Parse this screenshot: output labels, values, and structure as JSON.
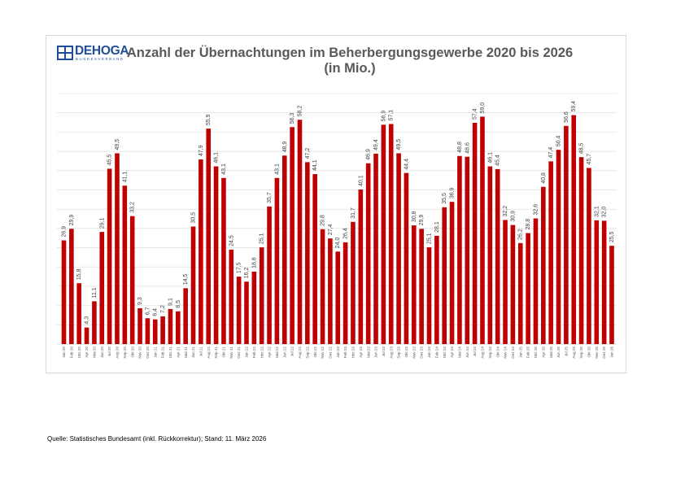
{
  "logo": {
    "name": "DEHOGA",
    "subtitle": "BUNDESVERBAND"
  },
  "source": "Quelle: Statistisches Bundesamt (inkl. Rückkorrektur); Stand: 11. März 2026",
  "colors": {
    "bar": "#c00000",
    "grid": "#d9d9d9",
    "title": "#595959",
    "brand": "#1f4e96"
  },
  "chart_data": {
    "type": "bar",
    "title": "Anzahl der Übernachtungen im Beherbergungsgewerbe 2020 bis 2026",
    "subtitle": "(in Mio.)",
    "xlabel": "",
    "ylabel": "",
    "ylim": [
      0,
      65
    ],
    "y_grid_step": 5,
    "grid": true,
    "y_axis_labels_visible": false,
    "legend": "none",
    "categories": [
      "Jan 20",
      "Feb 20",
      "Mrz 20",
      "Apr 20",
      "Mai 20",
      "Jun 20",
      "Jul 20",
      "Aug 20",
      "Sep 20",
      "Okt 20",
      "Nov 20",
      "Dez 20",
      "Jan 21",
      "Feb 21",
      "Mrz 21",
      "Apr 21",
      "Mai 21",
      "Jun 21",
      "Jul 21",
      "Aug 21",
      "Sep 21",
      "Okt 21",
      "Nov 21",
      "Dez 21",
      "Jan 22",
      "Feb 22",
      "Mrz 22",
      "Apr 22",
      "Mai 22",
      "Jun 22",
      "Jul 22",
      "Aug 22",
      "Sep 22",
      "Okt 22",
      "Nov 22",
      "Dez 22",
      "Jan 23",
      "Feb 23",
      "Mrz 23",
      "Apr 23",
      "Mai 23",
      "Jun 23",
      "Jul 23",
      "Aug 23",
      "Sep 23",
      "Okt 23",
      "Nov 23",
      "Dez 23",
      "Jan 24",
      "Feb 24",
      "Mrz 24",
      "Apr 24",
      "Mai 24",
      "Jun 24",
      "Jul 24",
      "Aug 24",
      "Sep 24",
      "Okt 24",
      "Nov 24",
      "Dez 24",
      "Jan 25",
      "Feb 25",
      "Mrz 25",
      "Apr 25",
      "Mai 25",
      "Jun 25",
      "Jul 25",
      "Aug 25",
      "Sep 25",
      "Okt 25",
      "Nov 25",
      "Dez 25",
      "Jan 26"
    ],
    "values": [
      26.9,
      29.9,
      15.8,
      4.3,
      11.1,
      29.1,
      45.5,
      49.5,
      41.1,
      33.2,
      9.3,
      6.7,
      6.4,
      7.2,
      9.1,
      8.5,
      14.5,
      30.5,
      47.9,
      55.9,
      46.1,
      43.1,
      24.5,
      17.5,
      16.2,
      18.8,
      25.1,
      35.7,
      43.1,
      48.9,
      56.3,
      58.2,
      47.2,
      44.1,
      29.8,
      27.4,
      24.0,
      26.4,
      31.7,
      40.1,
      46.9,
      49.4,
      56.9,
      57.1,
      49.5,
      44.4,
      30.8,
      29.9,
      25.1,
      28.1,
      35.5,
      36.9,
      48.8,
      48.6,
      57.4,
      59.0,
      46.1,
      45.4,
      32.2,
      30.9,
      26.2,
      28.8,
      32.6,
      40.8,
      47.4,
      50.4,
      56.6,
      59.4,
      48.5,
      45.7,
      32.1,
      32.0,
      25.5
    ],
    "value_labels": [
      "26,9",
      "29,9",
      "15,8",
      "4,3",
      "11,1",
      "29,1",
      "45,5",
      "49,5",
      "41,1",
      "33,2",
      "9,3",
      "6,7",
      "6,4",
      "7,2",
      "9,1",
      "8,5",
      "14,5",
      "30,5",
      "47,9",
      "55,9",
      "46,1",
      "43,1",
      "24,5",
      "17,5",
      "16,2",
      "18,8",
      "25,1",
      "35,7",
      "43,1",
      "48,9",
      "56,3",
      "58,2",
      "47,2",
      "44,1",
      "29,8",
      "27,4",
      "24,0",
      "26,4",
      "31,7",
      "40,1",
      "46,9",
      "49,4",
      "56,9",
      "57,1",
      "49,5",
      "44,4",
      "30,8",
      "29,9",
      "25,1",
      "28,1",
      "35,5",
      "36,9",
      "48,8",
      "48,6",
      "57,4",
      "59,0",
      "46,1",
      "45,4",
      "32,2",
      "30,9",
      "26,2",
      "28,8",
      "32,6",
      "40,8",
      "47,4",
      "50,4",
      "56,6",
      "59,4",
      "48,5",
      "45,7",
      "32,1",
      "32,0",
      "25,5"
    ]
  }
}
